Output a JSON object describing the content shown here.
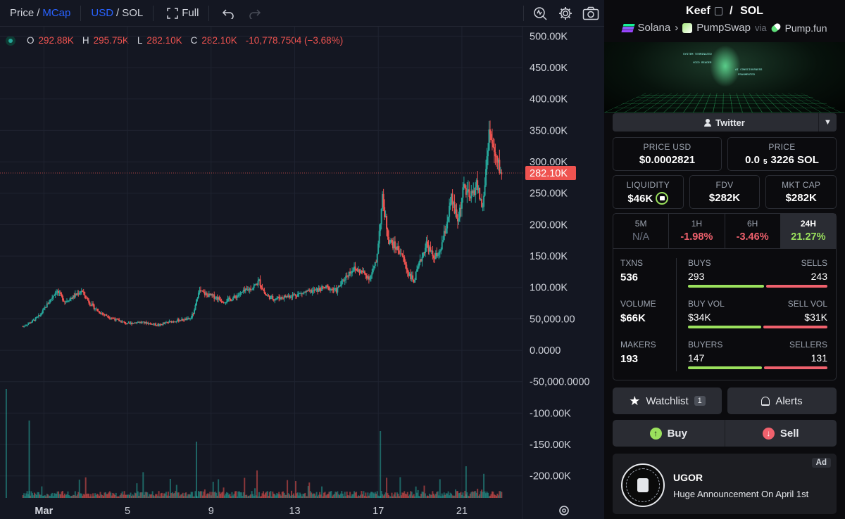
{
  "toolbar": {
    "price_label": "Price",
    "mcap_label": "MCap",
    "usd_label": "USD",
    "sol_label": "SOL",
    "full_label": "Full",
    "icons": [
      "fullscreen-icon",
      "undo-icon",
      "redo-icon",
      "indicator-icon",
      "settings-icon",
      "camera-icon"
    ]
  },
  "ohlc": {
    "o_label": "O",
    "o_value": "292.88K",
    "h_label": "H",
    "h_value": "295.75K",
    "l_label": "L",
    "l_value": "282.10K",
    "c_label": "C",
    "c_value": "282.10K",
    "change": "-10,778.7504 (−3.68%)"
  },
  "colors": {
    "up": "#26a69a",
    "down": "#ef5350",
    "background": "#141722",
    "last_price_tag": "#ef5350",
    "accent_green": "#9be15d",
    "accent_red": "#f0616d"
  },
  "chart_data": {
    "type": "candlestick",
    "y_tick_labels": [
      "500.00K",
      "450.00K",
      "400.00K",
      "350.00K",
      "300.00K",
      "250.00K",
      "200.00K",
      "150.00K",
      "100.00K",
      "50,000.00",
      "0.0000",
      "-50,000.0000",
      "-100.00K",
      "-150.00K",
      "-200.00K"
    ],
    "y_tick_values": [
      500000,
      450000,
      400000,
      350000,
      300000,
      250000,
      200000,
      150000,
      100000,
      50000,
      0,
      -50000,
      -100000,
      -150000,
      -200000
    ],
    "ylim": [
      -235000,
      515000
    ],
    "x_tick_labels": [
      "Mar",
      "5",
      "9",
      "13",
      "17",
      "21"
    ],
    "x_tick_days": [
      1,
      5,
      9,
      13,
      17,
      21
    ],
    "xlim_days": [
      -1.1,
      23.9
    ],
    "last_price": 282100,
    "last_price_label": "282.10K",
    "price_path": [
      [
        0.0,
        38000
      ],
      [
        0.4,
        45000
      ],
      [
        0.8,
        55000
      ],
      [
        1.2,
        75000
      ],
      [
        1.6,
        95000
      ],
      [
        2.0,
        78000
      ],
      [
        2.4,
        85000
      ],
      [
        2.8,
        95000
      ],
      [
        3.2,
        75000
      ],
      [
        3.6,
        62000
      ],
      [
        4.0,
        55000
      ],
      [
        4.5,
        48000
      ],
      [
        5.0,
        42000
      ],
      [
        5.5,
        45000
      ],
      [
        6.0,
        43000
      ],
      [
        6.5,
        40000
      ],
      [
        7.0,
        45000
      ],
      [
        7.5,
        48000
      ],
      [
        8.0,
        50000
      ],
      [
        8.2,
        62000
      ],
      [
        8.4,
        95000
      ],
      [
        8.8,
        88000
      ],
      [
        9.2,
        85000
      ],
      [
        9.6,
        78000
      ],
      [
        10.0,
        82000
      ],
      [
        10.5,
        92000
      ],
      [
        11.0,
        100000
      ],
      [
        11.3,
        110000
      ],
      [
        11.6,
        88000
      ],
      [
        12.0,
        82000
      ],
      [
        12.5,
        85000
      ],
      [
        13.0,
        88000
      ],
      [
        13.5,
        92000
      ],
      [
        14.0,
        95000
      ],
      [
        14.5,
        100000
      ],
      [
        15.0,
        95000
      ],
      [
        15.5,
        120000
      ],
      [
        15.8,
        130000
      ],
      [
        16.2,
        125000
      ],
      [
        16.6,
        115000
      ],
      [
        16.9,
        140000
      ],
      [
        17.2,
        240000
      ],
      [
        17.5,
        175000
      ],
      [
        17.8,
        165000
      ],
      [
        18.1,
        155000
      ],
      [
        18.4,
        125000
      ],
      [
        18.7,
        110000
      ],
      [
        19.0,
        140000
      ],
      [
        19.3,
        170000
      ],
      [
        19.6,
        150000
      ],
      [
        19.9,
        150000
      ],
      [
        20.2,
        190000
      ],
      [
        20.5,
        240000
      ],
      [
        20.8,
        205000
      ],
      [
        21.1,
        260000
      ],
      [
        21.4,
        240000
      ],
      [
        21.7,
        265000
      ],
      [
        22.0,
        225000
      ],
      [
        22.3,
        350000
      ],
      [
        22.6,
        305000
      ],
      [
        22.9,
        282100
      ]
    ],
    "series_labels": [
      "price",
      "volume"
    ]
  },
  "pair": {
    "token": "Keef",
    "quote": "SOL",
    "chain": "Solana",
    "dex": "PumpSwap",
    "via_label": "via",
    "launchpad": "Pump.fun"
  },
  "banner": {
    "line1": "SYSTEM TERMINATED",
    "line2": "VOID READER",
    "line3": "AI CONSCIOUSNESS",
    "line4": "FRAGMENTED"
  },
  "twitter_label": "Twitter",
  "stats": {
    "price_usd_label": "PRICE USD",
    "price_usd": "$0.0002821",
    "price_label": "PRICE",
    "price_prefix": "0.0",
    "price_sub": "5",
    "price_rest": "3226 SOL",
    "liquidity_label": "LIQUIDITY",
    "liquidity": "$46K",
    "fdv_label": "FDV",
    "fdv": "$282K",
    "mcap_label": "MKT CAP",
    "mcap": "$282K"
  },
  "periods": [
    {
      "label": "5M",
      "value": "N/A"
    },
    {
      "label": "1H",
      "value": "-1.98%"
    },
    {
      "label": "6H",
      "value": "-3.46%"
    },
    {
      "label": "24H",
      "value": "21.27%"
    }
  ],
  "txns": {
    "txns_label": "TXNS",
    "txns": "536",
    "volume_label": "VOLUME",
    "volume": "$66K",
    "makers_label": "MAKERS",
    "makers": "193",
    "buys_label": "BUYS",
    "buys": "293",
    "buys_fraction": 0.547,
    "sells_label": "SELLS",
    "sells": "243",
    "buy_vol_label": "BUY VOL",
    "buy_vol": "$34K",
    "buy_vol_fraction": 0.523,
    "sell_vol_label": "SELL VOL",
    "sell_vol": "$31K",
    "buyers_label": "BUYERS",
    "buyers": "147",
    "buyers_fraction": 0.529,
    "sellers_label": "SELLERS",
    "sellers": "131"
  },
  "actions": {
    "watchlist_label": "Watchlist",
    "watchlist_count": "1",
    "alerts_label": "Alerts",
    "buy_label": "Buy",
    "sell_label": "Sell"
  },
  "ad": {
    "tag": "Ad",
    "title": "UGOR",
    "text": "Huge Announcement On April 1st"
  }
}
